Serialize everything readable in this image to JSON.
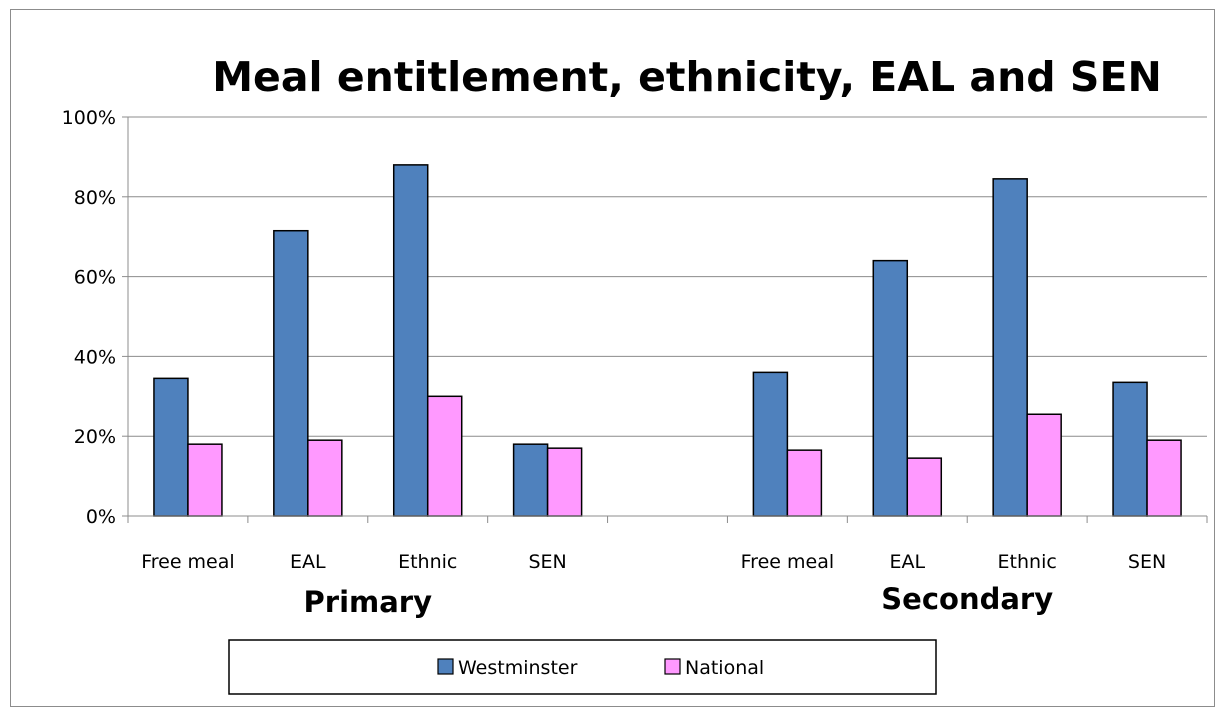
{
  "chart_data": {
    "type": "bar",
    "title": "Meal entitlement, ethnicity, EAL and SEN",
    "xlabel": "",
    "ylabel": "",
    "ylim": [
      0,
      100
    ],
    "yticks": [
      "0%",
      "20%",
      "40%",
      "60%",
      "80%",
      "100%"
    ],
    "tick_values": [
      0,
      20,
      40,
      60,
      80,
      100
    ],
    "grid": true,
    "legend_position": "bottom",
    "groups": [
      {
        "label": "Primary",
        "categories": [
          "Free meal",
          "EAL",
          "Ethnic",
          "SEN"
        ]
      },
      {
        "label": "Secondary",
        "categories": [
          "Free meal",
          "EAL",
          "Ethnic",
          "SEN"
        ]
      }
    ],
    "categories": [
      "Free meal",
      "EAL",
      "Ethnic",
      "SEN",
      "",
      "Free meal",
      "EAL",
      "Ethnic",
      "SEN"
    ],
    "series": [
      {
        "name": "Westminster",
        "color": "#4f81bd",
        "values": [
          34.5,
          71.5,
          88,
          18,
          null,
          36,
          64,
          84.5,
          33.5
        ]
      },
      {
        "name": "National",
        "color": "#ff99ff",
        "values": [
          18,
          19,
          30,
          17,
          null,
          16.5,
          14.5,
          25.5,
          19
        ]
      }
    ]
  }
}
